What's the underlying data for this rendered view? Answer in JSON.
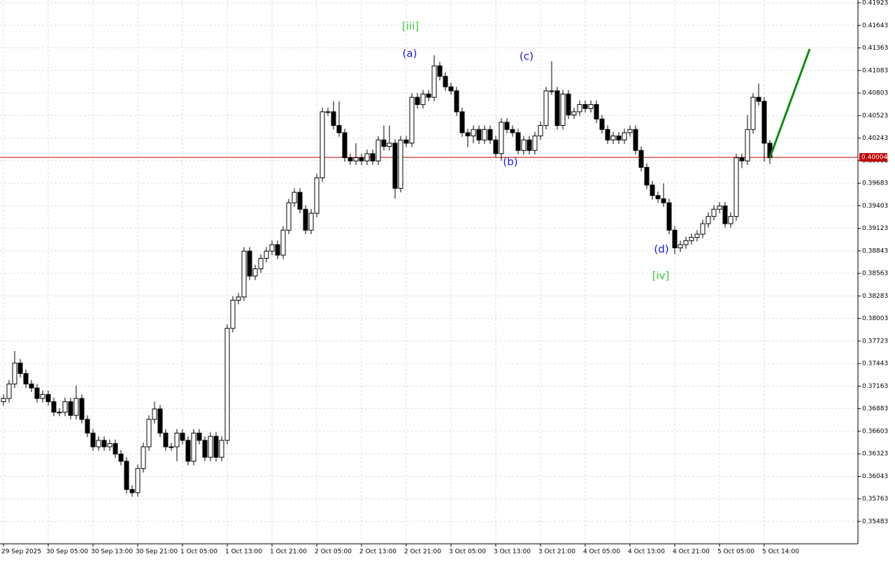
{
  "chart_data": {
    "type": "candlestick",
    "categories": [
      "29 Sep 2025",
      null,
      null,
      null,
      null,
      null,
      null,
      null,
      "30 Sep 05:00",
      null,
      null,
      null,
      null,
      null,
      null,
      null,
      "30 Sep 13:00",
      null,
      null,
      null,
      null,
      null,
      null,
      null,
      "30 Sep 21:00",
      null,
      null,
      null,
      null,
      null,
      null,
      null,
      "1 Oct 05:00",
      null,
      null,
      null,
      null,
      null,
      null,
      null,
      "1 Oct 13:00",
      null,
      null,
      null,
      null,
      null,
      null,
      null,
      "1 Oct 21:00",
      null,
      null,
      null,
      null,
      null,
      null,
      null,
      "2 Oct 05:00",
      null,
      null,
      null,
      null,
      null,
      null,
      null,
      "2 Oct 13:00",
      null,
      null,
      null,
      null,
      null,
      null,
      null,
      "2 Oct 21:00",
      null,
      null,
      null,
      null,
      null,
      null,
      null,
      "3 Oct 05:00",
      null,
      null,
      null,
      null,
      null,
      null,
      null,
      "3 Oct 13:00",
      null,
      null,
      null,
      null,
      null,
      null,
      null,
      "3 Oct 21:00",
      null,
      null,
      null,
      null,
      null,
      null,
      null,
      "4 Oct 05:00",
      null,
      null,
      null,
      null,
      null,
      null,
      null,
      "4 Oct 13:00",
      null,
      null,
      null,
      null,
      null,
      null,
      null,
      "4 Oct 21:00",
      null,
      null,
      null,
      null,
      null,
      null,
      null,
      "5 Oct 05:00",
      null,
      null,
      null,
      null,
      null,
      null,
      null,
      "5 Oct 14:00",
      null
    ],
    "open": [
      0.3697,
      0.3701,
      0.3719,
      0.3745,
      0.3732,
      0.3719,
      0.3714,
      0.3701,
      0.3706,
      0.3697,
      0.3684,
      0.3684,
      0.3697,
      0.368,
      0.3701,
      0.3675,
      0.3658,
      0.3641,
      0.3649,
      0.3641,
      0.3645,
      0.3632,
      0.3623,
      0.3588,
      0.3584,
      0.3614,
      0.3641,
      0.3675,
      0.3688,
      0.3658,
      0.3641,
      0.3641,
      0.3658,
      0.3649,
      0.3623,
      0.3658,
      0.3649,
      0.3628,
      0.3654,
      0.3628,
      0.3649,
      0.3788,
      0.3823,
      0.3827,
      0.3884,
      0.3853,
      0.3862,
      0.3875,
      0.3884,
      0.3892,
      0.3879,
      0.391,
      0.3944,
      0.3957,
      0.3936,
      0.391,
      0.3931,
      0.3975,
      0.4057,
      0.4057,
      0.404,
      0.4031,
      0.4,
      0.3996,
      0.4,
      0.3996,
      0.4005,
      0.3996,
      0.4022,
      0.4014,
      0.4018,
      0.3962,
      0.4022,
      0.4018,
      0.4075,
      0.4066,
      0.4079,
      0.4075,
      0.4114,
      0.4101,
      0.4088,
      0.4083,
      0.4057,
      0.4031,
      0.4027,
      0.4035,
      0.4022,
      0.4035,
      0.4022,
      0.4005,
      0.4044,
      0.4035,
      0.4031,
      0.4009,
      0.4022,
      0.4009,
      0.4027,
      0.404,
      0.4083,
      0.4083,
      0.404,
      0.4079,
      0.4053,
      0.4057,
      0.4066,
      0.4061,
      0.4066,
      0.4048,
      0.4035,
      0.4022,
      0.4027,
      0.4022,
      0.4031,
      0.4035,
      0.4009,
      0.3988,
      0.3966,
      0.3953,
      0.3949,
      0.3944,
      0.391,
      0.3888,
      0.3892,
      0.3897,
      0.3901,
      0.3905,
      0.3918,
      0.3927,
      0.3936,
      0.394,
      0.3918,
      0.3927,
      0.4,
      0.3996,
      0.4035,
      0.4075,
      0.407,
      0.4018
    ],
    "high": [
      0.3706,
      0.3724,
      0.376,
      0.375,
      0.3737,
      0.3724,
      0.3719,
      0.3711,
      0.3711,
      0.3702,
      0.3689,
      0.3702,
      0.3702,
      0.3717,
      0.3706,
      0.368,
      0.3663,
      0.3654,
      0.3654,
      0.365,
      0.365,
      0.3637,
      0.3628,
      0.3593,
      0.3619,
      0.3646,
      0.368,
      0.3697,
      0.3693,
      0.3663,
      0.3646,
      0.3663,
      0.3663,
      0.3654,
      0.3663,
      0.3663,
      0.3654,
      0.3659,
      0.3659,
      0.3654,
      0.3793,
      0.3828,
      0.3832,
      0.3889,
      0.3889,
      0.3867,
      0.388,
      0.3889,
      0.3897,
      0.3897,
      0.3915,
      0.3949,
      0.3962,
      0.3962,
      0.3941,
      0.3936,
      0.398,
      0.4062,
      0.4062,
      0.407,
      0.407,
      0.4036,
      0.4005,
      0.4018,
      0.4005,
      0.401,
      0.401,
      0.4027,
      0.404,
      0.404,
      0.4023,
      0.4027,
      0.4027,
      0.408,
      0.408,
      0.4084,
      0.4084,
      0.4127,
      0.4119,
      0.4106,
      0.4093,
      0.4088,
      0.4062,
      0.4036,
      0.404,
      0.404,
      0.404,
      0.404,
      0.4027,
      0.4049,
      0.4049,
      0.404,
      0.4036,
      0.4027,
      0.4027,
      0.4032,
      0.4045,
      0.4088,
      0.412,
      0.4088,
      0.4084,
      0.4084,
      0.4062,
      0.4071,
      0.4071,
      0.4071,
      0.4071,
      0.4053,
      0.404,
      0.4032,
      0.4032,
      0.4036,
      0.404,
      0.404,
      0.4014,
      0.3993,
      0.3971,
      0.3958,
      0.3968,
      0.3949,
      0.3915,
      0.3897,
      0.3902,
      0.3906,
      0.391,
      0.3923,
      0.3932,
      0.3941,
      0.3945,
      0.3945,
      0.3932,
      0.4005,
      0.4005,
      0.4053,
      0.408,
      0.4092,
      0.4075,
      0.4022
    ],
    "low": [
      0.3692,
      0.3696,
      0.3714,
      0.3727,
      0.3714,
      0.3709,
      0.3696,
      0.3696,
      0.3692,
      0.3679,
      0.3679,
      0.3679,
      0.3675,
      0.3675,
      0.367,
      0.3653,
      0.3636,
      0.3636,
      0.3636,
      0.3636,
      0.3627,
      0.3618,
      0.3583,
      0.3579,
      0.3579,
      0.3609,
      0.3636,
      0.367,
      0.3653,
      0.3636,
      0.3636,
      0.3623,
      0.3644,
      0.3618,
      0.3618,
      0.3644,
      0.3623,
      0.3623,
      0.3623,
      0.3623,
      0.3644,
      0.3783,
      0.3818,
      0.3822,
      0.3848,
      0.3848,
      0.3857,
      0.387,
      0.3879,
      0.3874,
      0.3874,
      0.3905,
      0.3939,
      0.3931,
      0.3905,
      0.3905,
      0.3926,
      0.397,
      0.4052,
      0.4035,
      0.4026,
      0.3995,
      0.3991,
      0.3991,
      0.3991,
      0.3991,
      0.3991,
      0.3991,
      0.4009,
      0.4009,
      0.3949,
      0.3957,
      0.4013,
      0.4013,
      0.4061,
      0.4061,
      0.407,
      0.407,
      0.4096,
      0.4083,
      0.4078,
      0.4052,
      0.4026,
      0.4013,
      0.4018,
      0.4017,
      0.4017,
      0.4017,
      0.4,
      0.3996,
      0.403,
      0.4026,
      0.4004,
      0.4004,
      0.4004,
      0.4004,
      0.4022,
      0.4035,
      0.4078,
      0.4035,
      0.4035,
      0.4048,
      0.4048,
      0.4052,
      0.4056,
      0.4056,
      0.4043,
      0.403,
      0.4017,
      0.4017,
      0.4017,
      0.4017,
      0.4026,
      0.4004,
      0.3983,
      0.3961,
      0.3948,
      0.3944,
      0.3939,
      0.3905,
      0.388,
      0.3883,
      0.3887,
      0.3892,
      0.3896,
      0.39,
      0.3913,
      0.3922,
      0.3931,
      0.3913,
      0.3913,
      0.3922,
      0.3987,
      0.3991,
      0.403,
      0.4065,
      0.3995,
      0.3992
    ],
    "close": [
      0.3701,
      0.3719,
      0.3745,
      0.3732,
      0.3719,
      0.3714,
      0.3701,
      0.3706,
      0.3697,
      0.3684,
      0.3684,
      0.3697,
      0.368,
      0.3701,
      0.3675,
      0.3658,
      0.3641,
      0.3649,
      0.3641,
      0.3645,
      0.3632,
      0.3623,
      0.3588,
      0.3584,
      0.3614,
      0.3641,
      0.3675,
      0.3688,
      0.3658,
      0.3641,
      0.3641,
      0.3658,
      0.3649,
      0.3623,
      0.3658,
      0.3649,
      0.3628,
      0.3654,
      0.3628,
      0.3649,
      0.3788,
      0.3823,
      0.3827,
      0.3884,
      0.3853,
      0.3862,
      0.3875,
      0.3884,
      0.3892,
      0.3879,
      0.391,
      0.3944,
      0.3957,
      0.3936,
      0.391,
      0.3931,
      0.3975,
      0.4057,
      0.4057,
      0.404,
      0.4031,
      0.4,
      0.3996,
      0.4,
      0.3996,
      0.4005,
      0.3996,
      0.4022,
      0.4014,
      0.4018,
      0.3962,
      0.4022,
      0.4018,
      0.4075,
      0.4066,
      0.4079,
      0.4075,
      0.4114,
      0.4101,
      0.4088,
      0.4083,
      0.4057,
      0.4031,
      0.4027,
      0.4035,
      0.4022,
      0.4035,
      0.4022,
      0.4005,
      0.4044,
      0.4035,
      0.4031,
      0.4009,
      0.4022,
      0.4009,
      0.4027,
      0.404,
      0.4083,
      0.4083,
      0.404,
      0.4079,
      0.4053,
      0.4057,
      0.4066,
      0.4061,
      0.4066,
      0.4048,
      0.4035,
      0.4022,
      0.4027,
      0.4022,
      0.4031,
      0.4035,
      0.4009,
      0.3988,
      0.3966,
      0.3953,
      0.3949,
      0.3944,
      0.391,
      0.3888,
      0.3892,
      0.3897,
      0.3901,
      0.3905,
      0.3918,
      0.3927,
      0.3936,
      0.394,
      0.3918,
      0.3927,
      0.4,
      0.3996,
      0.4035,
      0.4075,
      0.407,
      0.4018,
      0.4
    ],
    "up_color": "#ffffff",
    "down_color": "#000000",
    "ylim": [
      0.35205,
      0.41958
    ],
    "yticks": [
      0.41923,
      0.41643,
      0.41363,
      0.41083,
      0.40803,
      0.40523,
      0.40243,
      0.39963,
      0.39683,
      0.39403,
      0.39123,
      0.38843,
      0.38563,
      0.38283,
      0.38003,
      0.37723,
      0.37443,
      0.37163,
      0.36883,
      0.36603,
      0.36323,
      0.36043,
      0.35763,
      0.35483
    ],
    "grid": true,
    "last_price": 0.40004,
    "last_price_color": "#c00000",
    "projection": {
      "start": 0.4,
      "end": 0.4135,
      "color": "#138a13"
    },
    "annotations": [
      {
        "text": "[iii]",
        "color": "#3cc43c"
      },
      {
        "text": "(a)",
        "color": "#1a1acc"
      },
      {
        "text": "(b)",
        "color": "#1a1acc"
      },
      {
        "text": "(c)",
        "color": "#1a1acc"
      },
      {
        "text": "(d)",
        "color": "#1a1acc"
      },
      {
        "text": "[iv]",
        "color": "#3cc43c"
      }
    ]
  }
}
